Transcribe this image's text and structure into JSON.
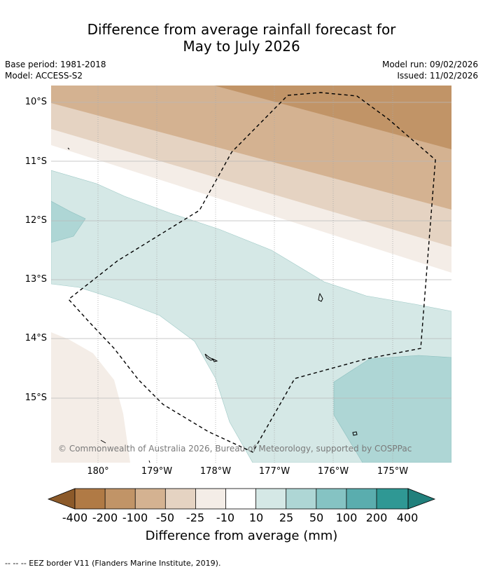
{
  "title": {
    "line1": "Difference from average rainfall forecast for",
    "line2": "May to July 2026"
  },
  "meta": {
    "base_period": "Base period: 1981-2018",
    "model": "Model: ACCESS-S2",
    "model_run": "Model run: 09/02/2026",
    "issued": "Issued: 11/02/2026"
  },
  "axes": {
    "lat_labels": [
      "10°S",
      "11°S",
      "12°S",
      "13°S",
      "14°S",
      "15°S"
    ],
    "lon_labels": [
      "180°",
      "179°W",
      "178°W",
      "177°W",
      "176°W",
      "175°W"
    ]
  },
  "copyright": "© Commonwealth of Australia 2026, Bureau of Meteorology, supported by COSPPac",
  "colorbar": {
    "title": "Difference from average (mm)",
    "labels": [
      "-400",
      "-200",
      "-100",
      "-50",
      "-25",
      "-10",
      "10",
      "25",
      "50",
      "100",
      "200",
      "400"
    ],
    "colors": [
      "#8c5a2a",
      "#b07a45",
      "#c19467",
      "#d4b291",
      "#e5d3c2",
      "#f4ede7",
      "#ffffff",
      "#d5e8e6",
      "#aed6d5",
      "#85c3c3",
      "#5aadae",
      "#2f9894",
      "#21807c"
    ]
  },
  "eez_note": "--  --  -- EEZ border V11 (Flanders Marine Institute, 2019)."
}
